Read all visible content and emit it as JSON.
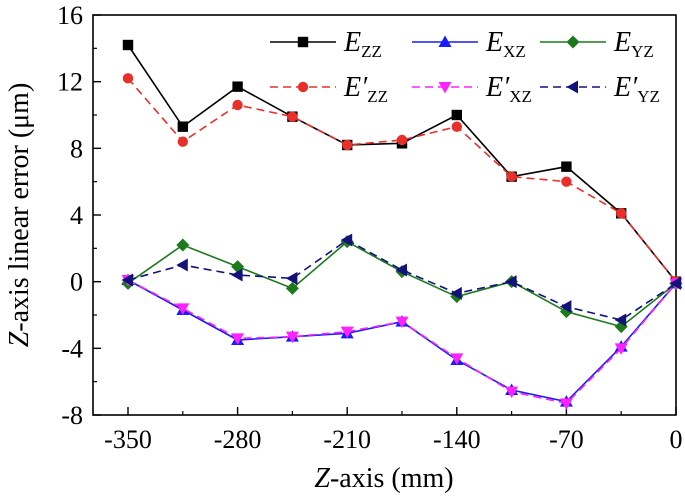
{
  "chart_data": {
    "type": "line",
    "x_axis": {
      "label_italic": "Z",
      "label_rest": "-axis (mm)",
      "range": [
        -350,
        0
      ],
      "ticks": [
        -350,
        -280,
        -210,
        -140,
        -70,
        0
      ],
      "tick_labels": [
        "-350",
        "-280",
        "-210",
        "-140",
        "-70",
        "0"
      ]
    },
    "y_axis": {
      "label_italic": "Z",
      "label_rest": "-axis linear error (μm)",
      "range": [
        -8,
        16
      ],
      "ticks": [
        -8,
        -4,
        0,
        4,
        8,
        12,
        16
      ],
      "tick_labels": [
        "-8",
        "-4",
        "0",
        "4",
        "8",
        "12",
        "16"
      ]
    },
    "x": [
      -350,
      -315,
      -280,
      -245,
      -210,
      -175,
      -140,
      -105,
      -70,
      -35,
      0
    ],
    "series": [
      {
        "name_main": "E",
        "name_prime": "",
        "name_sub": "ZZ",
        "color": "#000000",
        "marker": "square",
        "dash": "solid",
        "values": [
          14.2,
          9.3,
          11.7,
          9.9,
          8.2,
          8.3,
          10.0,
          6.3,
          6.9,
          4.1,
          0.0
        ]
      },
      {
        "name_main": "E",
        "name_prime": "",
        "name_sub": "XZ",
        "color": "#1a1aff",
        "marker": "triangle-up",
        "dash": "solid",
        "values": [
          0.1,
          -1.7,
          -3.5,
          -3.3,
          -3.1,
          -2.4,
          -4.7,
          -6.5,
          -7.2,
          -3.9,
          -0.1
        ]
      },
      {
        "name_main": "E",
        "name_prime": "",
        "name_sub": "YZ",
        "color": "#1c7a1c",
        "marker": "diamond",
        "dash": "solid",
        "values": [
          -0.1,
          2.2,
          0.9,
          -0.4,
          2.4,
          0.6,
          -0.9,
          0.0,
          -1.8,
          -2.7,
          -0.1
        ]
      },
      {
        "name_main": "E",
        "name_prime": "′",
        "name_sub": "ZZ",
        "color": "#e8302a",
        "marker": "circle",
        "dash": "dashed",
        "values": [
          12.2,
          8.4,
          10.6,
          9.9,
          8.2,
          8.5,
          9.3,
          6.3,
          6.0,
          4.1,
          0.0
        ]
      },
      {
        "name_main": "E",
        "name_prime": "′",
        "name_sub": "XZ",
        "color": "#ff22ff",
        "marker": "triangle-down",
        "dash": "dashed",
        "values": [
          0.1,
          -1.6,
          -3.4,
          -3.3,
          -3.0,
          -2.4,
          -4.6,
          -6.6,
          -7.3,
          -4.0,
          -0.1
        ]
      },
      {
        "name_main": "E",
        "name_prime": "′",
        "name_sub": "YZ",
        "color": "#12127a",
        "marker": "triangle-left",
        "dash": "dashed",
        "values": [
          0.1,
          1.0,
          0.4,
          0.2,
          2.5,
          0.7,
          -0.7,
          0.0,
          -1.5,
          -2.3,
          -0.1
        ]
      }
    ],
    "legend": {
      "position": "top-right",
      "columns": 3
    },
    "grid": false
  }
}
